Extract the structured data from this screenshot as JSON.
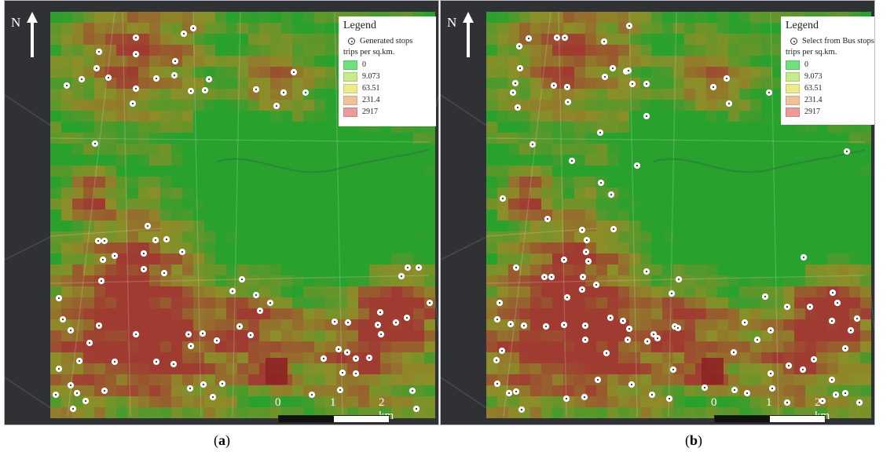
{
  "north_label": "N",
  "colors": {
    "class_0": "#6fe07a",
    "class_1": "#c7ea8a",
    "class_2": "#ecec8c",
    "class_3": "#f0c29a",
    "class_4": "#ef9a9a",
    "stop_fill": "#ffffff"
  },
  "panels": [
    {
      "id": "a",
      "caption_letter": "a",
      "legend": {
        "title": "Legend",
        "stop_label": "Generated stops",
        "measure_label": "trips per sq.km.",
        "classes": [
          "0",
          "9.073",
          "63.51",
          "231.4",
          "2917"
        ]
      },
      "scale": {
        "labels": [
          "0",
          "1",
          "2 km"
        ]
      }
    },
    {
      "id": "b",
      "caption_letter": "b",
      "legend": {
        "title": "Legend",
        "stop_label": "Select from Bus stops",
        "measure_label": "trips per sq.km.",
        "classes": [
          "0",
          "9.073",
          "63.51",
          "231.4",
          "2917"
        ]
      },
      "scale": {
        "labels": [
          "0",
          "1",
          "2 km"
        ]
      }
    }
  ]
}
